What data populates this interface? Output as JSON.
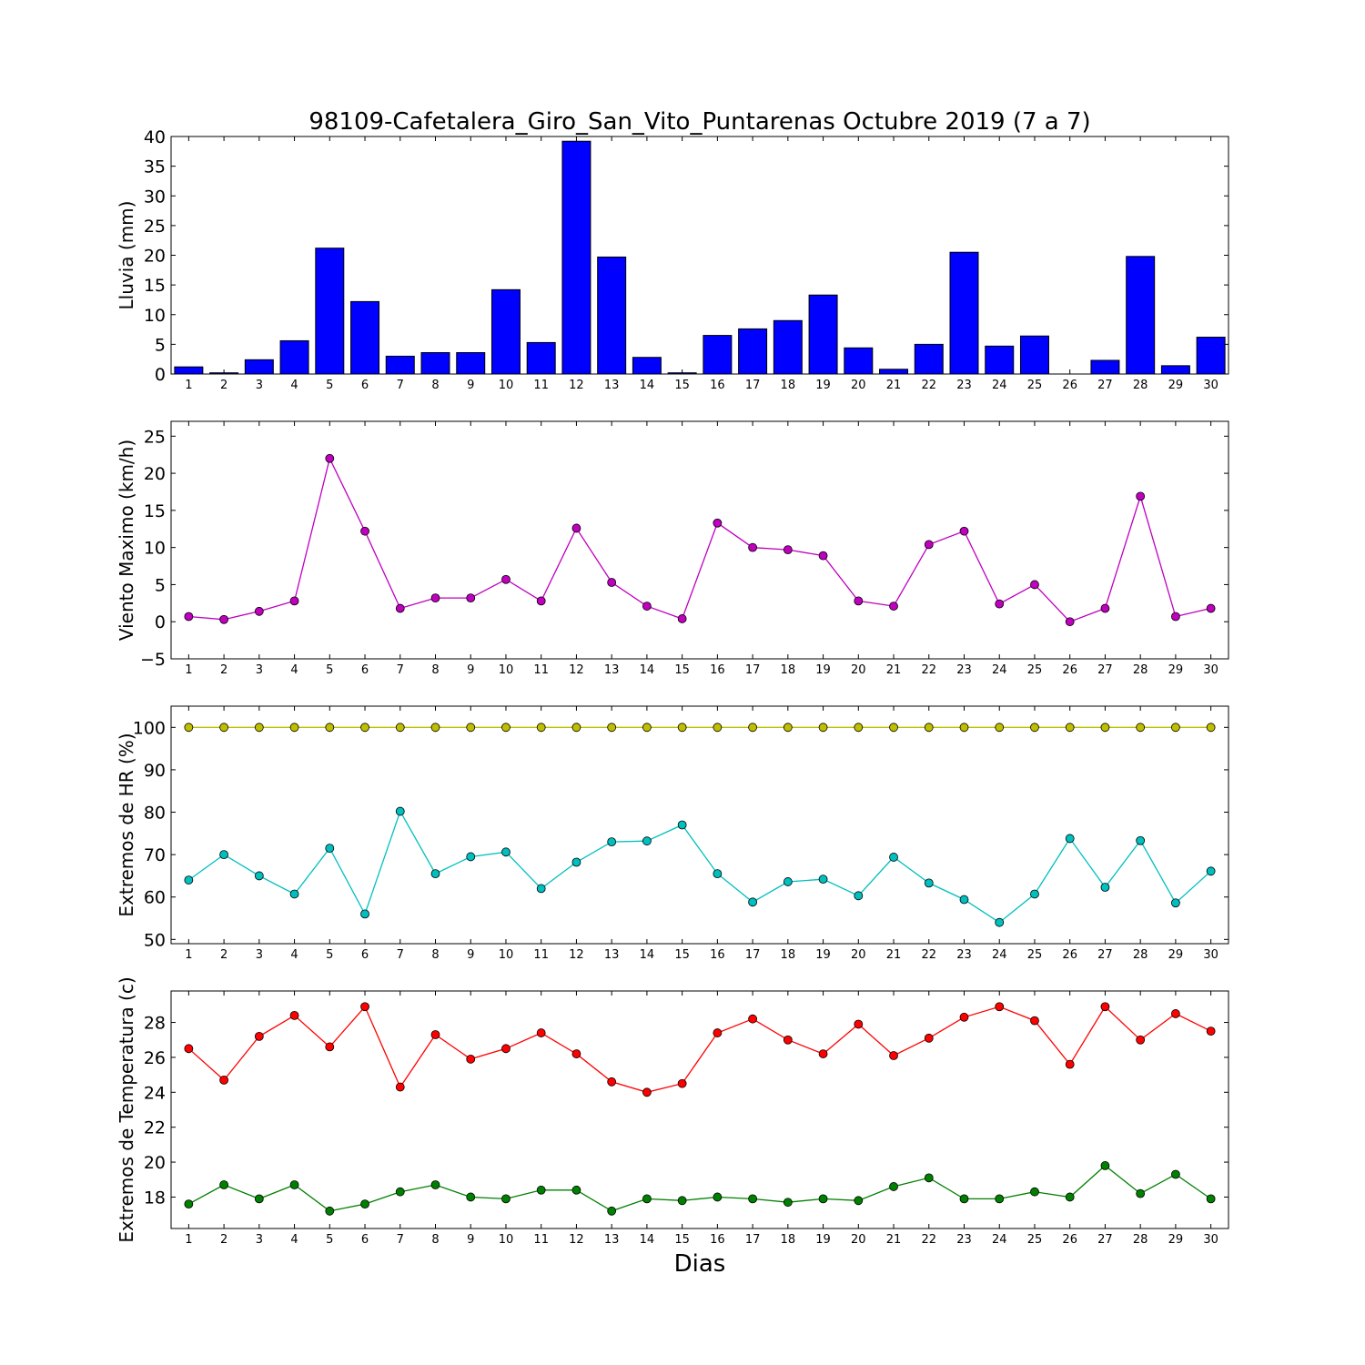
{
  "title": "98109-Cafetalera_Giro_San_Vito_Puntarenas Octubre 2019  (7 a 7)",
  "xlabel": "Dias",
  "chart_data": [
    {
      "type": "bar",
      "ylabel": "Lluvia (mm)",
      "ylim": [
        0,
        40
      ],
      "yticks": [
        0,
        5,
        10,
        15,
        20,
        25,
        30,
        35,
        40
      ],
      "categories": [
        1,
        2,
        3,
        4,
        5,
        6,
        7,
        8,
        9,
        10,
        11,
        12,
        13,
        14,
        15,
        16,
        17,
        18,
        19,
        20,
        21,
        22,
        23,
        24,
        25,
        26,
        27,
        28,
        29,
        30
      ],
      "series": [
        {
          "color": "#0000ff",
          "values": [
            1.2,
            0.2,
            2.4,
            5.6,
            21.2,
            12.2,
            3.0,
            3.6,
            3.6,
            14.2,
            5.3,
            39.2,
            19.7,
            2.8,
            0.2,
            6.5,
            7.6,
            9.0,
            13.3,
            4.4,
            0.8,
            5.0,
            20.5,
            4.7,
            6.4,
            0,
            2.3,
            19.8,
            1.4,
            6.2
          ]
        }
      ],
      "grid": false
    },
    {
      "type": "line",
      "ylabel": "Viento Maximo (km/h)",
      "ylim": [
        -5,
        27
      ],
      "yticks": [
        -5,
        0,
        5,
        10,
        15,
        20,
        25
      ],
      "x": [
        1,
        2,
        3,
        4,
        5,
        6,
        7,
        8,
        9,
        10,
        11,
        12,
        13,
        14,
        15,
        16,
        17,
        18,
        19,
        20,
        21,
        22,
        23,
        24,
        25,
        26,
        27,
        28,
        29,
        30
      ],
      "series": [
        {
          "color": "#bf00bf",
          "values": [
            0.7,
            0.3,
            1.4,
            2.8,
            22.0,
            12.2,
            1.8,
            3.2,
            3.2,
            5.7,
            2.8,
            12.6,
            5.3,
            2.1,
            0.4,
            13.3,
            10.0,
            9.7,
            8.9,
            2.8,
            2.1,
            10.4,
            12.2,
            2.4,
            5.0,
            0,
            1.8,
            16.9,
            0.7,
            1.8
          ]
        }
      ],
      "grid": false
    },
    {
      "type": "line",
      "ylabel": "Extremos de HR (%)",
      "ylim": [
        49,
        105
      ],
      "yticks": [
        50,
        60,
        70,
        80,
        90,
        100
      ],
      "x": [
        1,
        2,
        3,
        4,
        5,
        6,
        7,
        8,
        9,
        10,
        11,
        12,
        13,
        14,
        15,
        16,
        17,
        18,
        19,
        20,
        21,
        22,
        23,
        24,
        25,
        26,
        27,
        28,
        29,
        30
      ],
      "series": [
        {
          "color": "#bfbf00",
          "values": [
            100,
            100,
            100,
            100,
            100,
            100,
            100,
            100,
            100,
            100,
            100,
            100,
            100,
            100,
            100,
            100,
            100,
            100,
            100,
            100,
            100,
            100,
            100,
            100,
            100,
            100,
            100,
            100,
            100,
            100
          ]
        },
        {
          "color": "#00bfbf",
          "values": [
            64,
            70,
            65,
            60.7,
            71.5,
            56,
            80.2,
            65.5,
            69.5,
            70.6,
            62,
            68.2,
            73,
            73.2,
            77,
            65.5,
            58.8,
            63.6,
            64.2,
            60.3,
            69.4,
            63.3,
            59.4,
            54,
            60.7,
            73.8,
            62.3,
            73.3,
            58.6,
            66.1
          ]
        }
      ],
      "grid": false
    },
    {
      "type": "line",
      "ylabel": "Extremos de Temperatura (c)",
      "ylim": [
        16.2,
        29.8
      ],
      "yticks": [
        18,
        20,
        22,
        24,
        26,
        28
      ],
      "x": [
        1,
        2,
        3,
        4,
        5,
        6,
        7,
        8,
        9,
        10,
        11,
        12,
        13,
        14,
        15,
        16,
        17,
        18,
        19,
        20,
        21,
        22,
        23,
        24,
        25,
        26,
        27,
        28,
        29,
        30
      ],
      "series": [
        {
          "color": "#ff0000",
          "values": [
            26.5,
            24.7,
            27.2,
            28.4,
            26.6,
            28.9,
            24.3,
            27.3,
            25.9,
            26.5,
            27.4,
            26.2,
            24.6,
            24.0,
            24.5,
            27.4,
            28.2,
            27.0,
            26.2,
            27.9,
            26.1,
            27.1,
            28.3,
            28.9,
            28.1,
            25.6,
            28.9,
            27.0,
            28.5,
            27.5
          ]
        },
        {
          "color": "#008000",
          "values": [
            17.6,
            18.7,
            17.9,
            18.7,
            17.2,
            17.6,
            18.3,
            18.7,
            18.0,
            17.9,
            18.4,
            18.4,
            17.2,
            17.9,
            17.8,
            18.0,
            17.9,
            17.7,
            17.9,
            17.8,
            18.6,
            19.1,
            17.9,
            17.9,
            18.3,
            18.0,
            19.8,
            18.2,
            19.3,
            17.9
          ]
        }
      ],
      "grid": false
    }
  ]
}
